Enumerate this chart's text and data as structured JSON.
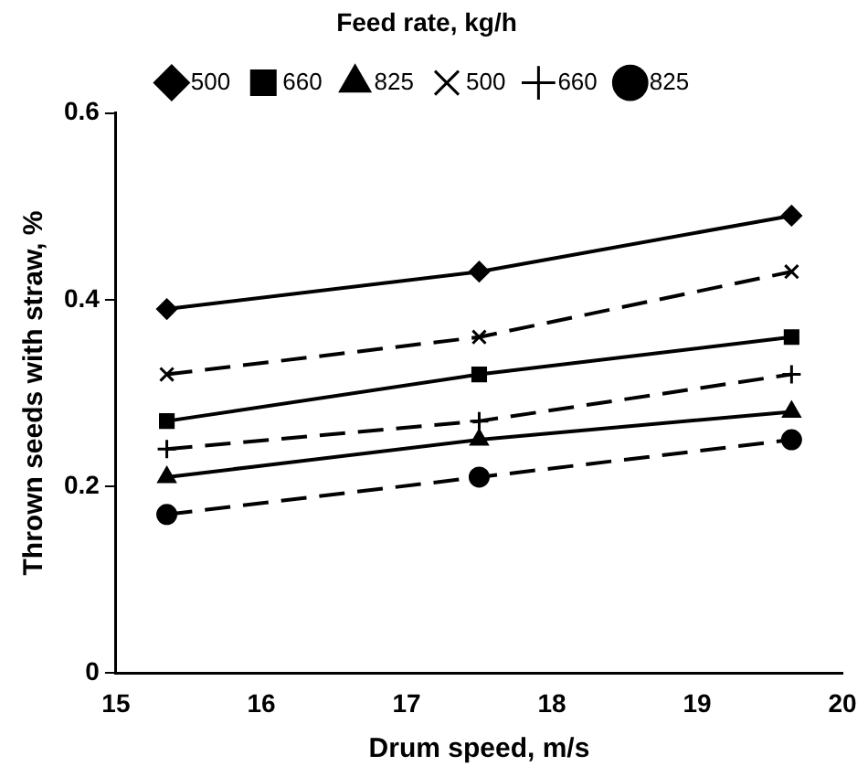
{
  "chart_data": {
    "type": "line",
    "legend_title": "Feed rate, kg/h",
    "xlabel": "Drum speed, m/s",
    "ylabel": "Thrown seeds with straw, %",
    "x": [
      15.35,
      17.5,
      19.65
    ],
    "xlim": [
      15,
      20
    ],
    "xticks": [
      15,
      16,
      17,
      18,
      19,
      20
    ],
    "ylim": [
      0,
      0.6
    ],
    "yticks": [
      0,
      {
        "value": 0.2,
        "label": "0.2"
      },
      {
        "value": 0.4,
        "label": "0.4"
      },
      {
        "value": 0.6,
        "label": "0.6"
      }
    ],
    "grid": false,
    "legend": "top",
    "series": [
      {
        "name": "500",
        "color": "#000000",
        "marker": "diamond",
        "line_style": "solid",
        "values": [
          0.39,
          0.43,
          0.49
        ]
      },
      {
        "name": "660",
        "color": "#000000",
        "marker": "square",
        "line_style": "solid",
        "values": [
          0.27,
          0.32,
          0.36
        ]
      },
      {
        "name": "825",
        "color": "#000000",
        "marker": "triangle",
        "line_style": "solid",
        "values": [
          0.21,
          0.25,
          0.28
        ]
      },
      {
        "name": "500",
        "color": "#000000",
        "marker": "cross",
        "line_style": "dashed",
        "values": [
          0.32,
          0.36,
          0.43
        ]
      },
      {
        "name": "660",
        "color": "#000000",
        "marker": "plus",
        "line_style": "dashed",
        "values": [
          0.24,
          0.27,
          0.32
        ]
      },
      {
        "name": "825",
        "color": "#000000",
        "marker": "circle",
        "line_style": "dashed",
        "values": [
          0.17,
          0.21,
          0.25
        ]
      }
    ]
  }
}
